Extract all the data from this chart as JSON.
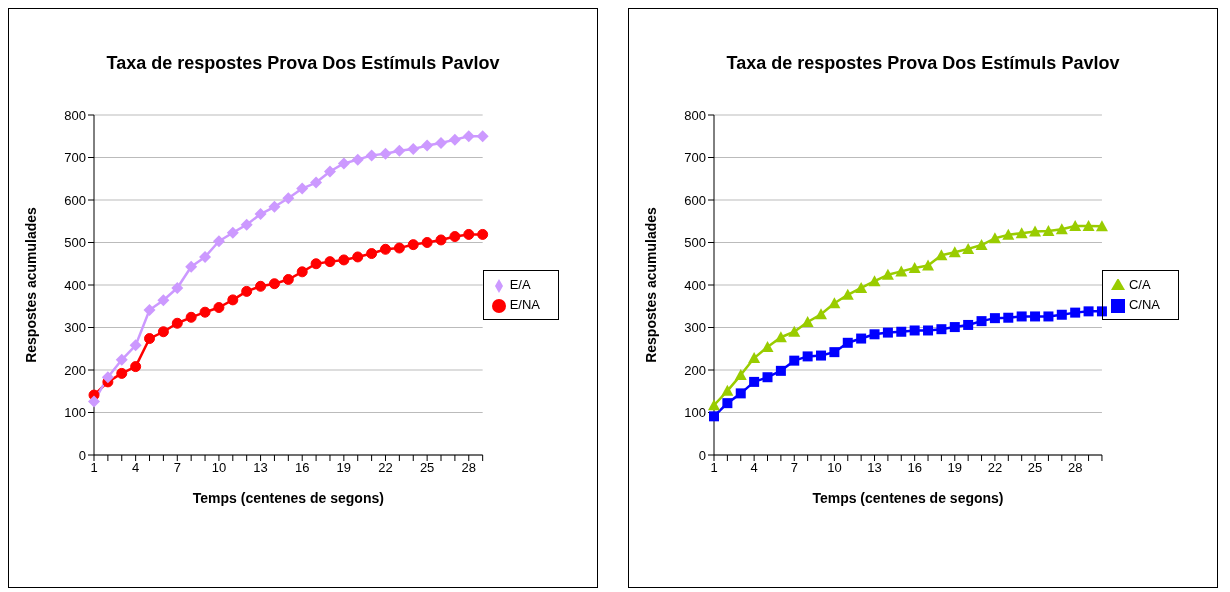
{
  "chart_data": [
    {
      "type": "line",
      "title": "Taxa de respostes Prova Dos Estímuls Pavlov",
      "xlabel": "Temps (centenes de segons)",
      "ylabel": "Respostes acumulades",
      "categories": [
        "1",
        null,
        null,
        "4",
        null,
        null,
        "7",
        null,
        null,
        "10",
        null,
        null,
        "13",
        null,
        null,
        "16",
        null,
        null,
        "19",
        null,
        null,
        "22",
        null,
        null,
        "25",
        null,
        null,
        "28",
        null
      ],
      "series": [
        {
          "name": "E/NA",
          "color": "#ff0000",
          "marker": "circle",
          "values": [
            141,
            172,
            192,
            208,
            274,
            290,
            310,
            324,
            336,
            347,
            365,
            385,
            397,
            403,
            413,
            431,
            450,
            455,
            459,
            466,
            474,
            484,
            487,
            495,
            500,
            506,
            514,
            519,
            519
          ]
        },
        {
          "name": "E/A",
          "color": "#cc99ff",
          "marker": "diamond",
          "values": [
            126,
            183,
            224,
            258,
            341,
            364,
            393,
            443,
            466,
            503,
            523,
            542,
            567,
            584,
            604,
            627,
            641,
            667,
            686,
            695,
            705,
            709,
            716,
            720,
            728,
            734,
            742,
            750,
            750
          ]
        }
      ],
      "ylim": [
        0,
        800
      ],
      "yticks": [
        0,
        100,
        200,
        300,
        400,
        500,
        600,
        700,
        800
      ],
      "grid": "y",
      "legend": "right"
    },
    {
      "type": "line",
      "title": "Taxa de respostes Prova Dos Estímuls Pavlov",
      "xlabel": "Temps (centenes de segons)",
      "ylabel": "Respostes acumulades",
      "categories": [
        "1",
        null,
        null,
        "4",
        null,
        null,
        "7",
        null,
        null,
        "10",
        null,
        null,
        "13",
        null,
        null,
        "16",
        null,
        null,
        "19",
        null,
        null,
        "22",
        null,
        null,
        "25",
        null,
        null,
        "28",
        null,
        null
      ],
      "series": [
        {
          "name": "C/NA",
          "color": "#0000ff",
          "marker": "square",
          "values": [
            91,
            122,
            145,
            172,
            183,
            198,
            222,
            232,
            234,
            242,
            264,
            274,
            284,
            288,
            290,
            293,
            293,
            296,
            301,
            306,
            315,
            322,
            323,
            326,
            326,
            326,
            330,
            335,
            338,
            338
          ]
        },
        {
          "name": "C/A",
          "color": "#99cc00",
          "marker": "triangle",
          "values": [
            117,
            151,
            188,
            228,
            254,
            277,
            290,
            313,
            331,
            357,
            377,
            393,
            409,
            424,
            432,
            440,
            446,
            470,
            477,
            485,
            494,
            510,
            518,
            522,
            526,
            527,
            531,
            539,
            539,
            538
          ]
        }
      ],
      "ylim": [
        0,
        800
      ],
      "yticks": [
        0,
        100,
        200,
        300,
        400,
        500,
        600,
        700,
        800
      ],
      "grid": "y",
      "legend": "right"
    }
  ]
}
